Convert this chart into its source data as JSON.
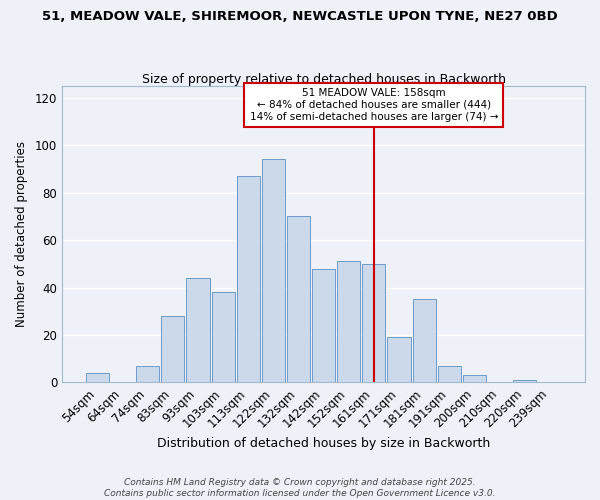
{
  "title_line1": "51, MEADOW VALE, SHIREMOOR, NEWCASTLE UPON TYNE, NE27 0BD",
  "title_line2": "Size of property relative to detached houses in Backworth",
  "xlabel": "Distribution of detached houses by size in Backworth",
  "ylabel": "Number of detached properties",
  "categories": [
    "54sqm",
    "64sqm",
    "74sqm",
    "83sqm",
    "93sqm",
    "103sqm",
    "113sqm",
    "122sqm",
    "132sqm",
    "142sqm",
    "152sqm",
    "161sqm",
    "171sqm",
    "181sqm",
    "191sqm",
    "200sqm",
    "210sqm",
    "220sqm",
    "239sqm"
  ],
  "values": [
    4,
    0,
    7,
    28,
    44,
    38,
    87,
    94,
    70,
    48,
    51,
    50,
    19,
    35,
    7,
    3,
    0,
    1,
    0
  ],
  "bar_color": "#ccd9eb",
  "bar_edge_color": "#6b9bc8",
  "vline_x_index": 11,
  "vline_color": "#cc0000",
  "annotation_title": "51 MEADOW VALE: 158sqm",
  "annotation_line1": "← 84% of detached houses are smaller (444)",
  "annotation_line2": "14% of semi-detached houses are larger (74) →",
  "annotation_box_color": "#cc0000",
  "ylim": [
    0,
    125
  ],
  "yticks": [
    0,
    20,
    40,
    60,
    80,
    100,
    120
  ],
  "background_color": "#eef1f8",
  "grid_color": "#ffffff",
  "footer_line1": "Contains HM Land Registry data © Crown copyright and database right 2025.",
  "footer_line2": "Contains public sector information licensed under the Open Government Licence v3.0."
}
